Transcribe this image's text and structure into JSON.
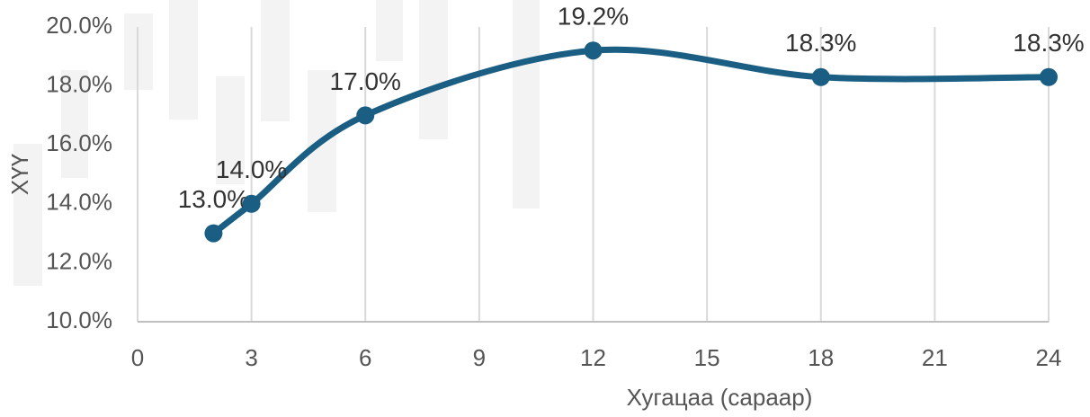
{
  "chart_data": {
    "type": "line",
    "x_label": "Хугацаа (сараар)",
    "y_label": "ХҮҮ",
    "x": [
      2,
      3,
      6,
      12,
      18,
      24
    ],
    "series": [
      {
        "color": "#1b5e83",
        "values": [
          13.0,
          14.0,
          17.0,
          19.2,
          18.3,
          18.3
        ],
        "value_labels": [
          "13.0%",
          "14.0%",
          "17.0%",
          "19.2%",
          "18.3%",
          "18.3%"
        ]
      }
    ],
    "xlim": [
      0,
      24
    ],
    "xticks": [
      0,
      3,
      6,
      9,
      12,
      15,
      18,
      21,
      24
    ],
    "ylim": [
      10,
      20
    ],
    "yticks": [
      {
        "value": 10,
        "label": "10.0%"
      },
      {
        "value": 12,
        "label": "12.0%"
      },
      {
        "value": 14,
        "label": "14.0%"
      },
      {
        "value": 16,
        "label": "16.0%"
      },
      {
        "value": 18,
        "label": "18.0%"
      },
      {
        "value": 20,
        "label": "20.0%"
      }
    ],
    "grid": true,
    "smooth": true
  }
}
